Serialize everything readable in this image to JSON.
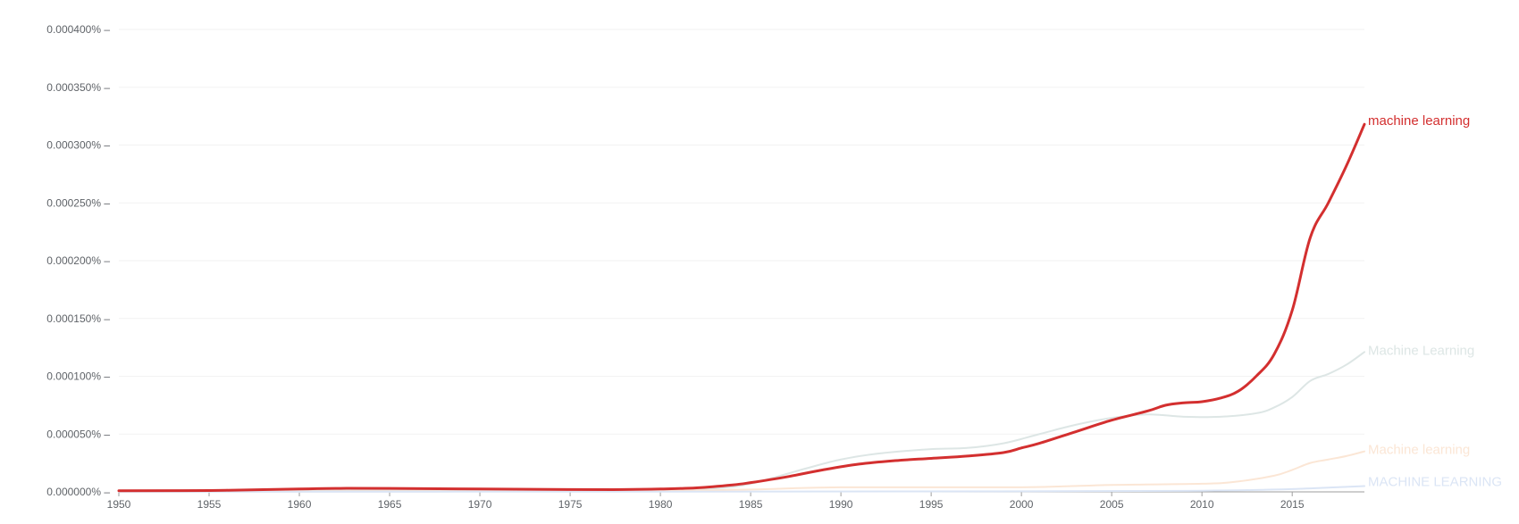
{
  "chart_data": {
    "type": "line",
    "title": "",
    "xlabel": "",
    "ylabel": "",
    "x_range": [
      1950,
      2019
    ],
    "ylim": [
      0,
      0.0004
    ],
    "grid": true,
    "legend": "inline labels at right end of each line",
    "x_ticks": [
      "1950",
      "1955",
      "1960",
      "1965",
      "1970",
      "1975",
      "1980",
      "1985",
      "1990",
      "1995",
      "2000",
      "2005",
      "2010",
      "2015"
    ],
    "y_ticks": [
      "0.000000%",
      "0.000050%",
      "0.000100%",
      "0.000150%",
      "0.000200%",
      "0.000250%",
      "0.000300%",
      "0.000350%",
      "0.000400%"
    ],
    "series": [
      {
        "name": "Machine Learning",
        "color": "#dde6e5",
        "points": [
          [
            1950,
            5e-07
          ],
          [
            1960,
            1e-06
          ],
          [
            1970,
            1e-06
          ],
          [
            1980,
            1e-06
          ],
          [
            1983,
            3e-06
          ],
          [
            1985,
            7e-06
          ],
          [
            1988,
            2e-05
          ],
          [
            1990,
            2.8e-05
          ],
          [
            1992,
            3.3e-05
          ],
          [
            1995,
            3.7e-05
          ],
          [
            1997,
            3.8e-05
          ],
          [
            1999,
            4.2e-05
          ],
          [
            2001,
            5e-05
          ],
          [
            2003,
            5.8e-05
          ],
          [
            2005,
            6.4e-05
          ],
          [
            2007,
            6.7e-05
          ],
          [
            2009,
            6.5e-05
          ],
          [
            2011,
            6.5e-05
          ],
          [
            2013,
            6.8e-05
          ],
          [
            2014,
            7.3e-05
          ],
          [
            2015,
            8.2e-05
          ],
          [
            2016,
            9.6e-05
          ],
          [
            2017,
            0.000102
          ],
          [
            2018,
            0.00011
          ],
          [
            2019,
            0.000121
          ]
        ]
      },
      {
        "name": "Machine learning",
        "color": "#fbe6d5",
        "points": [
          [
            1950,
            2e-07
          ],
          [
            1970,
            5e-07
          ],
          [
            1980,
            1e-06
          ],
          [
            1985,
            2e-06
          ],
          [
            1990,
            4e-06
          ],
          [
            2000,
            4e-06
          ],
          [
            2005,
            6e-06
          ],
          [
            2010,
            7e-06
          ],
          [
            2012,
            9e-06
          ],
          [
            2014,
            1.4e-05
          ],
          [
            2015,
            1.9e-05
          ],
          [
            2016,
            2.5e-05
          ],
          [
            2017,
            2.8e-05
          ],
          [
            2018,
            3.1e-05
          ],
          [
            2019,
            3.5e-05
          ]
        ]
      },
      {
        "name": "MACHINE LEARNING",
        "color": "#dbe5f5",
        "points": [
          [
            1950,
            1e-07
          ],
          [
            1980,
            2e-07
          ],
          [
            2000,
            5e-07
          ],
          [
            2010,
            1e-06
          ],
          [
            2014,
            2e-06
          ],
          [
            2016,
            3e-06
          ],
          [
            2019,
            5e-06
          ]
        ]
      },
      {
        "name": "machine learning",
        "color": "#d32f2f",
        "points": [
          [
            1950,
            1e-06
          ],
          [
            1955,
            1.2e-06
          ],
          [
            1960,
            2.5e-06
          ],
          [
            1962,
            3e-06
          ],
          [
            1965,
            3e-06
          ],
          [
            1970,
            2.5e-06
          ],
          [
            1975,
            2e-06
          ],
          [
            1978,
            2e-06
          ],
          [
            1980,
            2.5e-06
          ],
          [
            1982,
            3.5e-06
          ],
          [
            1984,
            6e-06
          ],
          [
            1985,
            8e-06
          ],
          [
            1987,
            1.3e-05
          ],
          [
            1989,
            1.9e-05
          ],
          [
            1991,
            2.4e-05
          ],
          [
            1993,
            2.7e-05
          ],
          [
            1995,
            2.9e-05
          ],
          [
            1997,
            3.1e-05
          ],
          [
            1999,
            3.4e-05
          ],
          [
            2000,
            3.8e-05
          ],
          [
            2001,
            4.2e-05
          ],
          [
            2003,
            5.2e-05
          ],
          [
            2005,
            6.2e-05
          ],
          [
            2007,
            7e-05
          ],
          [
            2008,
            7.5e-05
          ],
          [
            2009,
            7.7e-05
          ],
          [
            2010,
            7.8e-05
          ],
          [
            2011,
            8.1e-05
          ],
          [
            2012,
            8.7e-05
          ],
          [
            2013,
            0.0001
          ],
          [
            2014,
            0.000119
          ],
          [
            2015,
            0.000157
          ],
          [
            2016,
            0.00022
          ],
          [
            2017,
            0.00025
          ],
          [
            2018,
            0.000282
          ],
          [
            2019,
            0.000318
          ]
        ]
      }
    ]
  }
}
